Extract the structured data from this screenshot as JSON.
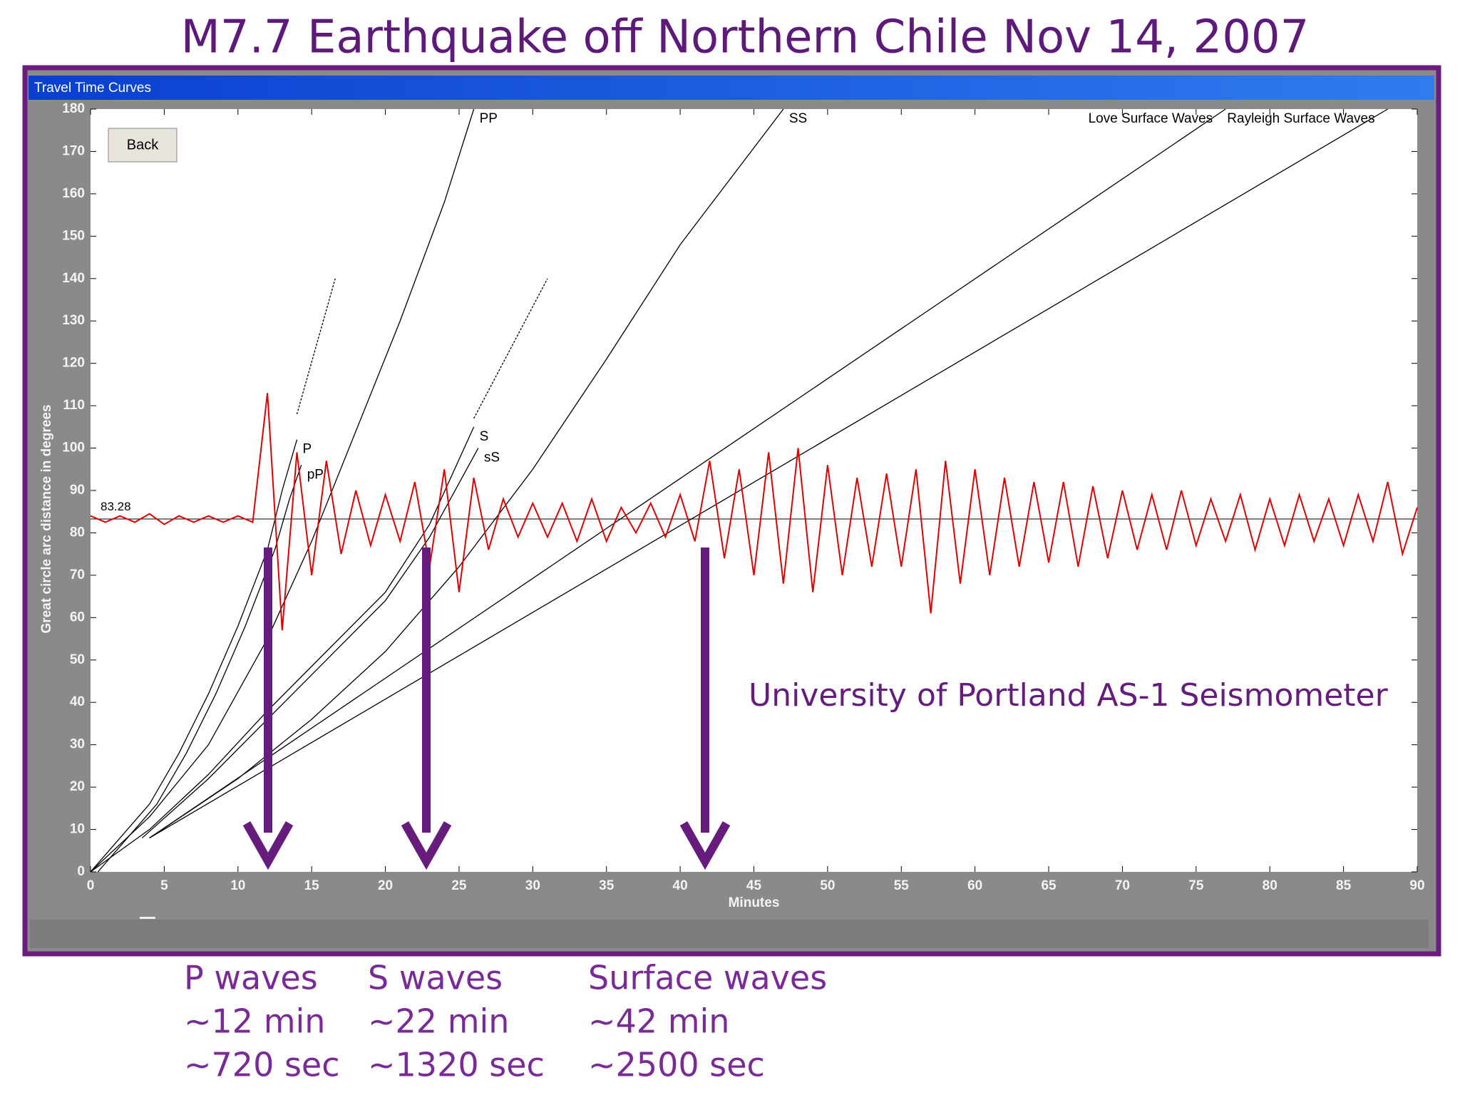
{
  "slide_title": "M7.7 Earthquake off Northern Chile Nov 14, 2007",
  "window": {
    "title": "Travel Time Curves",
    "button": "Back"
  },
  "chart_data": {
    "type": "line",
    "x_label": "Minutes",
    "y_label": "Great circle arc distance in degrees",
    "annotation": "University of Portland AS-1 Seismometer",
    "xlim": [
      0,
      90
    ],
    "ylim": [
      0,
      180
    ],
    "xticks": [
      0,
      5,
      10,
      15,
      20,
      25,
      30,
      35,
      40,
      45,
      50,
      55,
      60,
      65,
      70,
      75,
      80,
      85,
      90
    ],
    "yticks": [
      0,
      10,
      20,
      30,
      40,
      50,
      60,
      70,
      80,
      90,
      100,
      110,
      120,
      130,
      140,
      150,
      160,
      170,
      180
    ],
    "grid": false,
    "baseline": 83.28,
    "series": [
      {
        "name": "P",
        "color": "#000000",
        "x": [
          0,
          2,
          4,
          6,
          8,
          10,
          12,
          13,
          14
        ],
        "values": [
          0,
          8,
          16,
          28,
          42,
          58,
          76,
          90,
          102
        ]
      },
      {
        "name": "pP",
        "color": "#000000",
        "x": [
          0.5,
          2.5,
          4.5,
          6.5,
          8.5,
          10.5,
          12.5,
          13.5,
          14.3
        ],
        "values": [
          0,
          8,
          16,
          28,
          42,
          58,
          76,
          88,
          96
        ]
      },
      {
        "color": "#000000",
        "dashed": true,
        "x": [
          14,
          16.6
        ],
        "values": [
          108,
          140
        ]
      },
      {
        "name": "PP",
        "color": "#000000",
        "x": [
          0,
          4,
          8,
          12,
          15,
          18,
          21,
          24,
          26
        ],
        "values": [
          0,
          13,
          30,
          55,
          78,
          104,
          130,
          158,
          180
        ]
      },
      {
        "name": "S",
        "color": "#000000",
        "x": [
          0,
          4,
          8,
          12,
          16,
          20,
          23,
          26
        ],
        "values": [
          0,
          10,
          23,
          38,
          52,
          66,
          82,
          105
        ]
      },
      {
        "name": "sS",
        "color": "#000000",
        "x": [
          3.5,
          8,
          12,
          16,
          20,
          23,
          26.3
        ],
        "values": [
          8,
          22,
          36,
          50,
          64,
          79,
          100
        ]
      },
      {
        "color": "#000000",
        "dashed": true,
        "x": [
          26,
          31
        ],
        "values": [
          107,
          140
        ]
      },
      {
        "name": "SS",
        "color": "#000000",
        "x": [
          4,
          10,
          15,
          20,
          25,
          30,
          35,
          40,
          47
        ],
        "values": [
          8,
          22,
          36,
          52,
          72,
          95,
          121,
          148,
          180
        ]
      },
      {
        "name": "Love Surface Waves",
        "color": "#000000",
        "x": [
          4,
          77
        ],
        "values": [
          8,
          180
        ]
      },
      {
        "name": "Rayleigh Surface Waves",
        "color": "#000000",
        "x": [
          4,
          88
        ],
        "values": [
          8,
          180
        ]
      },
      {
        "color": "#e00000",
        "x": [
          0,
          1,
          2,
          3,
          4,
          5,
          6,
          7,
          8,
          9,
          10,
          11,
          12,
          13,
          14,
          15,
          16,
          17,
          18,
          19,
          20,
          21,
          22,
          23,
          24,
          25,
          26,
          27,
          28,
          29,
          30,
          31,
          32,
          33,
          34,
          35,
          36,
          37,
          38,
          39,
          40,
          41,
          42,
          43,
          44,
          45,
          46,
          47,
          48,
          49,
          50,
          51,
          52,
          53,
          54,
          55,
          56,
          57,
          58,
          59,
          60,
          61,
          62,
          63,
          64,
          65,
          66,
          67,
          68,
          69,
          70,
          71,
          72,
          73,
          74,
          75,
          76,
          77,
          78,
          79,
          80,
          81,
          82,
          83,
          84,
          85,
          86,
          87,
          88,
          89,
          90
        ],
        "values": [
          84,
          82.5,
          84,
          82.5,
          84.5,
          82,
          84,
          82.5,
          84,
          82.5,
          84,
          82.5,
          113,
          57,
          99,
          70,
          97,
          75,
          90,
          77,
          89,
          78,
          92,
          72,
          95,
          66,
          93,
          76,
          88,
          79,
          87,
          79,
          87,
          78,
          88,
          78,
          86,
          80,
          87,
          79,
          89,
          78,
          97,
          74,
          95,
          70,
          99,
          68,
          100,
          66,
          96,
          70,
          93,
          72,
          94,
          72,
          95,
          61,
          97,
          68,
          95,
          70,
          93,
          72,
          92,
          73,
          92,
          72,
          91,
          74,
          90,
          76,
          89,
          76,
          90,
          77,
          88,
          78,
          89,
          76,
          88,
          77,
          89,
          78,
          88,
          77,
          89,
          78,
          92,
          75,
          86
        ]
      }
    ]
  },
  "notes": [
    {
      "lines": [
        "P waves",
        "~12 min",
        "~720 sec"
      ]
    },
    {
      "lines": [
        "S waves",
        "~22 min",
        "~1320 sec"
      ]
    },
    {
      "lines": [
        "Surface waves",
        "~42 min",
        "~2500 sec"
      ]
    }
  ]
}
